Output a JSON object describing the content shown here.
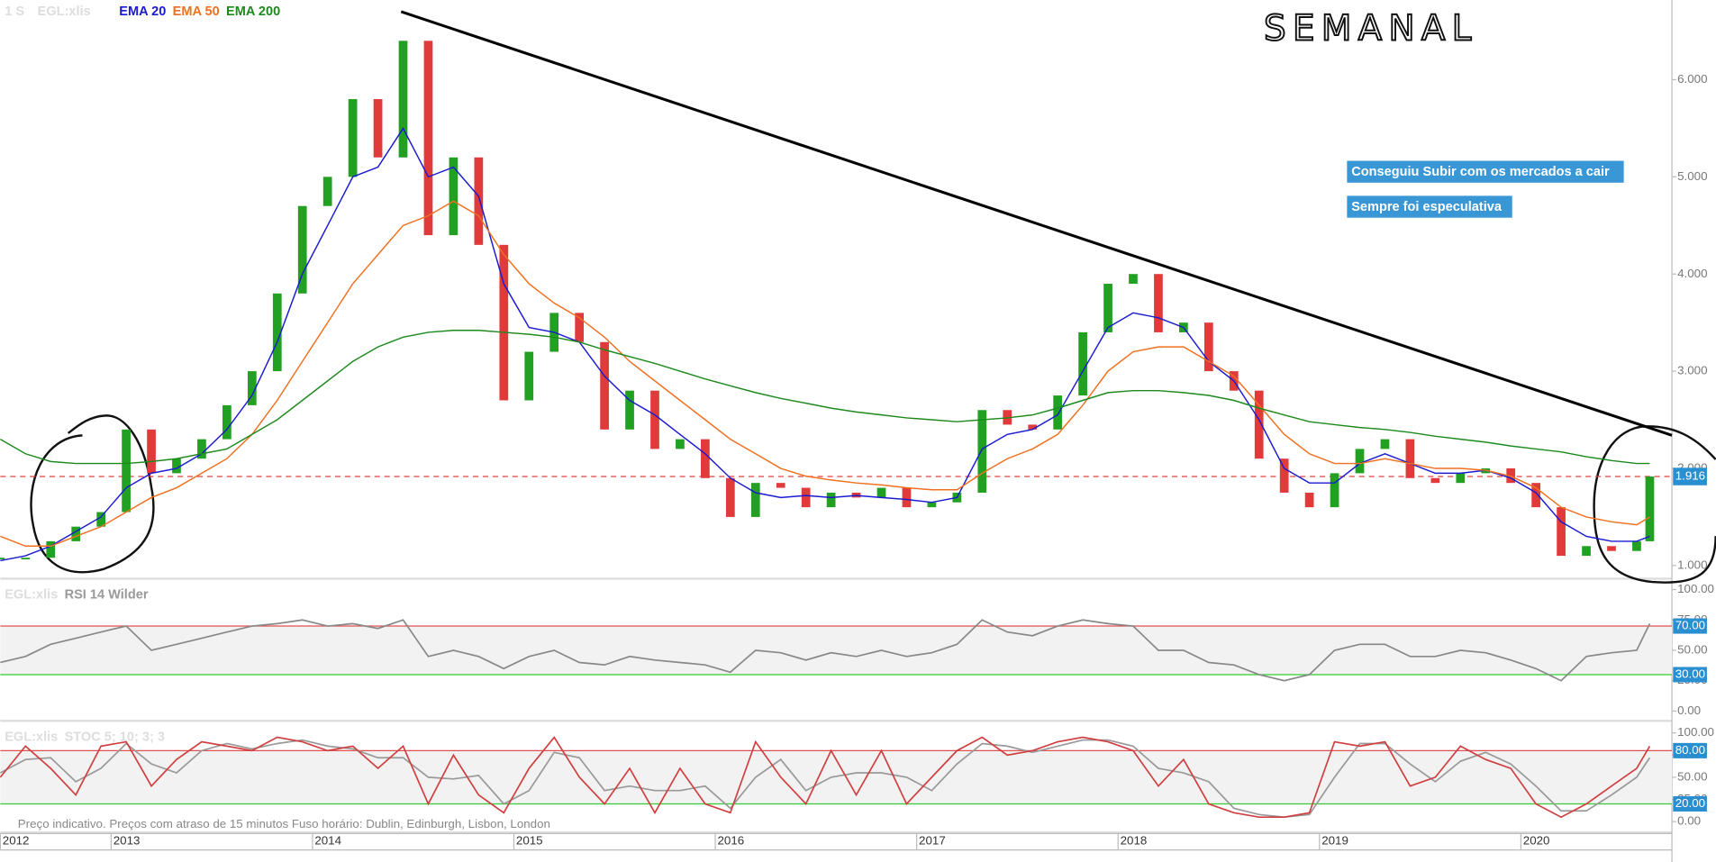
{
  "chart_data": [
    {
      "type": "candlestick",
      "interval": "1 S",
      "title": "SEMANAL",
      "annotations": [
        "Conseguiu Subir com os mercados a cair",
        "Sempre foi especulativa"
      ],
      "footer": "Preço indicativo. Preços com atraso de 15 minutos    Fuso horário: Dublin, Edinburgh, Lisbon, London",
      "x": [
        2012.45,
        2012.575,
        2012.7,
        2012.825,
        2012.95,
        2013.075,
        2013.2,
        2013.325,
        2013.45,
        2013.575,
        2013.7,
        2013.825,
        2013.95,
        2014.075,
        2014.2,
        2014.325,
        2014.45,
        2014.575,
        2014.7,
        2014.825,
        2014.95,
        2015.075,
        2015.2,
        2015.325,
        2015.45,
        2015.575,
        2015.7,
        2015.825,
        2015.95,
        2016.075,
        2016.2,
        2016.325,
        2016.45,
        2016.575,
        2016.7,
        2016.825,
        2016.95,
        2017.075,
        2017.2,
        2017.325,
        2017.45,
        2017.575,
        2017.7,
        2017.825,
        2017.95,
        2018.075,
        2018.2,
        2018.325,
        2018.45,
        2018.575,
        2018.7,
        2018.825,
        2018.95,
        2019.075,
        2019.2,
        2019.325,
        2019.45,
        2019.575,
        2019.7,
        2019.825,
        2019.95,
        2020.075,
        2020.2,
        2020.325,
        2020.45,
        2020.575,
        2020.64
      ],
      "xlim": [
        2012.45,
        2020.75
      ],
      "xticks": [
        {
          "value": 2012.45,
          "label": "2012"
        },
        2013,
        2014,
        2015,
        2016,
        2017,
        2018,
        2019,
        2020
      ],
      "ylim": [
        0.876,
        6.82
      ],
      "yticks": [
        {
          "value": 1,
          "label": "1.000"
        },
        {
          "value": 2,
          "label": "2.000"
        },
        {
          "value": 3,
          "label": "3.000"
        },
        {
          "value": 4,
          "label": "4.000"
        },
        {
          "value": 5,
          "label": "5.000"
        },
        {
          "value": 6,
          "label": "6.000"
        }
      ],
      "last_price": 1.916,
      "up_color": "#22a022",
      "down_color": "#e03a3a",
      "trendline": {
        "x": [
          2014.44,
          2020.75
        ],
        "values": [
          6.7,
          2.34
        ],
        "color": "#000000"
      },
      "series": [
        {
          "name": "EGL:xlis",
          "role": "price",
          "values": [
            1.08,
            1.08,
            1.25,
            1.4,
            1.55,
            2.4,
            1.95,
            2.1,
            2.3,
            2.65,
            3.0,
            3.8,
            4.7,
            5.0,
            5.8,
            5.2,
            6.4,
            4.4,
            5.2,
            4.3,
            2.7,
            3.2,
            3.6,
            3.3,
            2.4,
            2.8,
            2.2,
            2.3,
            1.9,
            1.5,
            1.85,
            1.8,
            1.6,
            1.75,
            1.7,
            1.8,
            1.6,
            1.65,
            1.75,
            2.6,
            2.45,
            2.4,
            2.75,
            3.4,
            3.9,
            4.0,
            3.4,
            3.5,
            3.0,
            2.8,
            2.1,
            1.75,
            1.6,
            1.95,
            2.2,
            2.3,
            1.9,
            1.85,
            1.95,
            2.0,
            1.85,
            1.6,
            1.1,
            1.2,
            1.15,
            1.25,
            1.916
          ]
        },
        {
          "name": "EMA 20",
          "color": "#1a1ad0",
          "values": [
            1.05,
            1.1,
            1.2,
            1.35,
            1.5,
            1.8,
            1.95,
            2.0,
            2.15,
            2.4,
            2.75,
            3.3,
            4.0,
            4.5,
            5.0,
            5.1,
            5.5,
            5.0,
            5.1,
            4.8,
            3.9,
            3.45,
            3.4,
            3.3,
            2.95,
            2.7,
            2.55,
            2.35,
            2.15,
            1.9,
            1.75,
            1.7,
            1.72,
            1.7,
            1.72,
            1.7,
            1.68,
            1.65,
            1.7,
            2.2,
            2.35,
            2.4,
            2.55,
            3.0,
            3.45,
            3.6,
            3.55,
            3.45,
            3.1,
            2.9,
            2.5,
            2.0,
            1.85,
            1.85,
            2.05,
            2.15,
            2.05,
            1.95,
            1.95,
            1.98,
            1.9,
            1.75,
            1.45,
            1.3,
            1.25,
            1.25,
            1.3
          ]
        },
        {
          "name": "EMA 50",
          "color": "#f07020",
          "values": [
            1.3,
            1.2,
            1.2,
            1.3,
            1.4,
            1.55,
            1.7,
            1.8,
            1.95,
            2.1,
            2.35,
            2.7,
            3.1,
            3.5,
            3.9,
            4.2,
            4.5,
            4.6,
            4.75,
            4.6,
            4.2,
            3.9,
            3.7,
            3.55,
            3.35,
            3.1,
            2.9,
            2.7,
            2.5,
            2.3,
            2.15,
            2.0,
            1.92,
            1.88,
            1.85,
            1.83,
            1.8,
            1.78,
            1.78,
            1.95,
            2.1,
            2.2,
            2.35,
            2.65,
            3.0,
            3.2,
            3.25,
            3.25,
            3.1,
            2.95,
            2.65,
            2.35,
            2.15,
            2.05,
            2.05,
            2.1,
            2.05,
            2.0,
            2.0,
            1.98,
            1.92,
            1.8,
            1.6,
            1.5,
            1.45,
            1.42,
            1.5
          ]
        },
        {
          "name": "EMA 200",
          "color": "#1e8a1e",
          "values": [
            2.3,
            2.15,
            2.07,
            2.05,
            2.05,
            2.05,
            2.07,
            2.1,
            2.15,
            2.2,
            2.35,
            2.5,
            2.7,
            2.9,
            3.1,
            3.25,
            3.35,
            3.4,
            3.42,
            3.42,
            3.4,
            3.38,
            3.35,
            3.3,
            3.22,
            3.15,
            3.08,
            3.0,
            2.92,
            2.85,
            2.78,
            2.72,
            2.67,
            2.62,
            2.58,
            2.55,
            2.52,
            2.5,
            2.48,
            2.5,
            2.52,
            2.55,
            2.62,
            2.7,
            2.78,
            2.8,
            2.8,
            2.78,
            2.75,
            2.7,
            2.62,
            2.55,
            2.48,
            2.45,
            2.42,
            2.4,
            2.37,
            2.33,
            2.3,
            2.27,
            2.23,
            2.2,
            2.17,
            2.12,
            2.08,
            2.05,
            2.05
          ]
        }
      ]
    },
    {
      "type": "line",
      "symbol": "EGL:xlis",
      "indicator": "RSI 14 Wilder",
      "ylim": [
        -7.2,
        105.4
      ],
      "yticks": [
        {
          "value": 0,
          "label": "0.00"
        },
        {
          "value": 25,
          "label": "25.00"
        },
        {
          "value": 50,
          "label": "50.00"
        },
        {
          "value": 75,
          "label": "75.00"
        },
        {
          "value": 100,
          "label": "100.00"
        }
      ],
      "levels": [
        {
          "value": 70,
          "label": "70.00",
          "color": "#e05050"
        },
        {
          "value": 30,
          "label": "30.00",
          "color": "#33cc33"
        }
      ],
      "series": [
        {
          "color": "#888888",
          "values": [
            40,
            45,
            55,
            60,
            65,
            70,
            50,
            55,
            60,
            65,
            70,
            72,
            75,
            70,
            72,
            68,
            75,
            45,
            50,
            45,
            35,
            45,
            50,
            40,
            38,
            45,
            42,
            40,
            38,
            32,
            50,
            48,
            42,
            48,
            45,
            50,
            45,
            48,
            55,
            75,
            65,
            62,
            70,
            75,
            72,
            70,
            50,
            50,
            40,
            38,
            30,
            25,
            30,
            50,
            55,
            55,
            45,
            45,
            50,
            48,
            42,
            35,
            25,
            45,
            48,
            50,
            72
          ]
        }
      ]
    },
    {
      "type": "line",
      "symbol": "EGL:xlis",
      "indicator": "STOC 5; 10; 3; 3",
      "ylim": [
        -11,
        108.6
      ],
      "yticks": [
        {
          "value": 0,
          "label": "0.00"
        },
        {
          "value": 25,
          "label": "25.00"
        },
        {
          "value": 50,
          "label": "50.00"
        },
        {
          "value": 75,
          "label": "75.00"
        },
        {
          "value": 100,
          "label": "100.00"
        }
      ],
      "levels": [
        {
          "value": 80,
          "label": "80.00",
          "color": "#e05050"
        },
        {
          "value": 20,
          "label": "20.00",
          "color": "#33cc33"
        }
      ],
      "series": [
        {
          "color": "#999999",
          "values": [
            55,
            70,
            72,
            45,
            60,
            88,
            65,
            55,
            80,
            88,
            82,
            88,
            92,
            85,
            82,
            72,
            72,
            50,
            48,
            52,
            20,
            35,
            78,
            72,
            35,
            40,
            35,
            35,
            40,
            15,
            50,
            70,
            35,
            50,
            55,
            55,
            50,
            35,
            65,
            88,
            85,
            78,
            85,
            92,
            92,
            85,
            60,
            55,
            45,
            15,
            8,
            5,
            8,
            50,
            88,
            88,
            65,
            45,
            68,
            78,
            65,
            40,
            12,
            12,
            30,
            50,
            72
          ]
        },
        {
          "color": "#d04040",
          "values": [
            50,
            85,
            60,
            30,
            85,
            90,
            40,
            70,
            90,
            85,
            80,
            95,
            90,
            80,
            85,
            60,
            85,
            20,
            75,
            30,
            10,
            60,
            95,
            50,
            20,
            60,
            10,
            60,
            20,
            10,
            90,
            50,
            20,
            80,
            30,
            80,
            20,
            50,
            80,
            95,
            75,
            80,
            90,
            95,
            90,
            80,
            40,
            70,
            20,
            10,
            5,
            5,
            10,
            90,
            85,
            90,
            40,
            50,
            85,
            70,
            60,
            20,
            5,
            20,
            40,
            60,
            85
          ]
        }
      ]
    }
  ]
}
